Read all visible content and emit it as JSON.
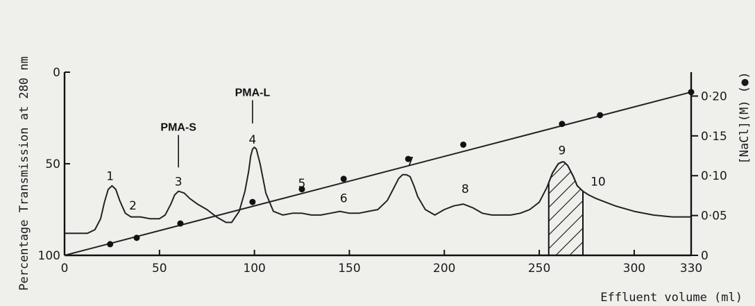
{
  "chart_data": {
    "type": "line",
    "xlabel": "Effluent volume (ml)",
    "ylabel": "Percentage Transmission at 280 nm",
    "y2label": "[NaCl](M) (●)",
    "xlim": [
      0,
      330
    ],
    "ylim": [
      100,
      0
    ],
    "y2lim": [
      0,
      0.23
    ],
    "x_ticks": [
      "0",
      "50",
      "100",
      "150",
      "200",
      "250",
      "300",
      "330"
    ],
    "y_ticks": [
      "0",
      "50",
      "100"
    ],
    "y2_ticks": [
      "0",
      "0·05",
      "0·10",
      "0·15",
      "0·20"
    ],
    "grid": false,
    "series": [
      {
        "kind": "transmission",
        "x": [
          0,
          12,
          16,
          19,
          21,
          23,
          25,
          27,
          29,
          32,
          35,
          40,
          45,
          50,
          53,
          56,
          58,
          60,
          63,
          66,
          70,
          75,
          80,
          85,
          88,
          92,
          95,
          97,
          98,
          99,
          100,
          101,
          103,
          106,
          110,
          115,
          120,
          125,
          130,
          135,
          140,
          145,
          150,
          155,
          160,
          165,
          170,
          173,
          176,
          178,
          180,
          182,
          184,
          186,
          190,
          195,
          200,
          205,
          210,
          215,
          220,
          225,
          230,
          235,
          240,
          245,
          250,
          254,
          257,
          260,
          262,
          263,
          265,
          268,
          270,
          273,
          276,
          280,
          290,
          300,
          310,
          320,
          330
        ],
        "y": [
          88,
          88,
          86,
          80,
          71,
          64,
          62,
          64,
          70,
          77,
          79,
          79,
          80,
          80,
          78,
          72,
          67,
          65,
          66,
          69,
          72,
          75,
          79,
          82,
          82,
          76,
          65,
          54,
          46,
          42,
          41,
          42,
          50,
          66,
          76,
          78,
          77,
          77,
          78,
          78,
          77,
          76,
          77,
          77,
          76,
          75,
          70,
          64,
          58,
          56,
          56,
          57,
          62,
          68,
          75,
          78,
          75,
          73,
          72,
          74,
          77,
          78,
          78,
          78,
          77,
          75,
          71,
          63,
          55,
          50,
          49,
          49,
          51,
          57,
          62,
          65,
          67,
          69,
          73,
          76,
          78,
          79,
          79
        ]
      },
      {
        "kind": "nacl",
        "x": [
          24,
          38,
          61,
          99,
          125,
          147,
          181,
          210,
          262,
          282,
          330
        ],
        "y": [
          0.014,
          0.022,
          0.04,
          0.067,
          0.083,
          0.096,
          0.121,
          0.139,
          0.165,
          0.176,
          0.205
        ]
      }
    ],
    "shaded_region": {
      "x_from": 255,
      "x_to": 273
    },
    "peak_labels": [
      {
        "text": "1",
        "x": 24,
        "y": 62
      },
      {
        "text": "2",
        "x": 36,
        "y": 78
      },
      {
        "text": "3",
        "x": 60,
        "y": 65
      },
      {
        "text": "4",
        "x": 99,
        "y": 42
      },
      {
        "text": "5",
        "x": 125,
        "y": 66
      },
      {
        "text": "6",
        "x": 147,
        "y": 74
      },
      {
        "text": "7",
        "x": 182,
        "y": 54
      },
      {
        "text": "8",
        "x": 211,
        "y": 69
      },
      {
        "text": "9",
        "x": 262,
        "y": 48
      },
      {
        "text": "10",
        "x": 281,
        "y": 65
      }
    ],
    "fraction_labels": [
      {
        "text": "PMA-S",
        "x": 60,
        "y": 32,
        "line_to_y": 52
      },
      {
        "text": "PMA-L",
        "x": 99,
        "y": 13,
        "line_to_y": 28
      }
    ]
  }
}
